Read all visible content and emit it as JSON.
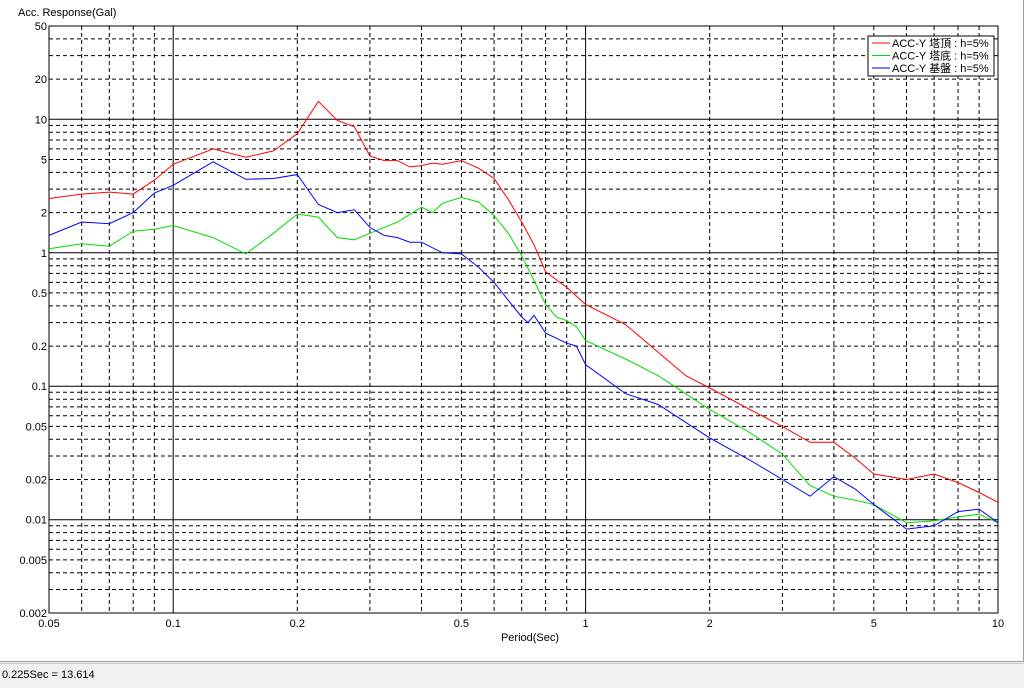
{
  "status": {
    "text": "0.225Sec = 13.614"
  },
  "chart_data": {
    "type": "line",
    "ylabel": "Acc. Response(Gal)",
    "xlabel": "Period(Sec)",
    "xscale": "log",
    "yscale": "log",
    "xlim": [
      0.05,
      10
    ],
    "ylim": [
      0.002,
      50
    ],
    "grid": true,
    "legend": "top-right",
    "x_ticks": [
      "0.05",
      "0.1",
      "0.2",
      "0.5",
      "1",
      "2",
      "5",
      "10"
    ],
    "y_ticks": [
      "0.002",
      "0.005",
      "0.01",
      "0.02",
      "0.05",
      "0.1",
      "0.2",
      "0.5",
      "1",
      "2",
      "5",
      "10",
      "20",
      "50"
    ],
    "series": [
      {
        "name": "ACC-Y 塔頂 : h=5%",
        "color": "#ff0000",
        "points": [
          [
            0.05,
            2.55
          ],
          [
            0.06,
            2.75
          ],
          [
            0.07,
            2.85
          ],
          [
            0.08,
            2.75
          ],
          [
            0.09,
            3.5
          ],
          [
            0.1,
            4.6
          ],
          [
            0.125,
            6.0
          ],
          [
            0.15,
            5.2
          ],
          [
            0.175,
            5.8
          ],
          [
            0.2,
            7.8
          ],
          [
            0.225,
            13.614
          ],
          [
            0.25,
            9.8
          ],
          [
            0.275,
            8.8
          ],
          [
            0.3,
            5.3
          ],
          [
            0.325,
            4.9
          ],
          [
            0.35,
            4.9
          ],
          [
            0.375,
            4.4
          ],
          [
            0.4,
            4.5
          ],
          [
            0.425,
            4.7
          ],
          [
            0.45,
            4.6
          ],
          [
            0.5,
            4.9
          ],
          [
            0.55,
            4.3
          ],
          [
            0.6,
            3.6
          ],
          [
            0.65,
            2.5
          ],
          [
            0.7,
            1.7
          ],
          [
            0.75,
            1.15
          ],
          [
            0.8,
            0.72
          ],
          [
            0.9,
            0.55
          ],
          [
            1.0,
            0.41
          ],
          [
            1.25,
            0.29
          ],
          [
            1.5,
            0.18
          ],
          [
            1.75,
            0.12
          ],
          [
            2.0,
            0.097
          ],
          [
            2.5,
            0.067
          ],
          [
            3.0,
            0.05
          ],
          [
            3.5,
            0.038
          ],
          [
            4.0,
            0.038
          ],
          [
            4.5,
            0.029
          ],
          [
            5.0,
            0.022
          ],
          [
            6.0,
            0.02
          ],
          [
            7.0,
            0.022
          ],
          [
            8.0,
            0.019
          ],
          [
            9.0,
            0.016
          ],
          [
            10.0,
            0.0135
          ]
        ]
      },
      {
        "name": "ACC-Y 塔底 : h=5%",
        "color": "#00dd00",
        "points": [
          [
            0.05,
            1.07
          ],
          [
            0.06,
            1.17
          ],
          [
            0.07,
            1.12
          ],
          [
            0.08,
            1.45
          ],
          [
            0.09,
            1.5
          ],
          [
            0.1,
            1.6
          ],
          [
            0.125,
            1.3
          ],
          [
            0.15,
            0.98
          ],
          [
            0.175,
            1.4
          ],
          [
            0.2,
            1.95
          ],
          [
            0.225,
            1.85
          ],
          [
            0.25,
            1.3
          ],
          [
            0.275,
            1.25
          ],
          [
            0.3,
            1.4
          ],
          [
            0.35,
            1.7
          ],
          [
            0.4,
            2.2
          ],
          [
            0.425,
            2.0
          ],
          [
            0.45,
            2.35
          ],
          [
            0.5,
            2.6
          ],
          [
            0.55,
            2.4
          ],
          [
            0.6,
            1.9
          ],
          [
            0.65,
            1.4
          ],
          [
            0.7,
            0.95
          ],
          [
            0.75,
            0.62
          ],
          [
            0.8,
            0.41
          ],
          [
            0.85,
            0.33
          ],
          [
            0.9,
            0.31
          ],
          [
            0.95,
            0.28
          ],
          [
            1.0,
            0.22
          ],
          [
            1.25,
            0.16
          ],
          [
            1.5,
            0.12
          ],
          [
            2.0,
            0.067
          ],
          [
            2.5,
            0.045
          ],
          [
            3.0,
            0.031
          ],
          [
            3.5,
            0.018
          ],
          [
            4.0,
            0.015
          ],
          [
            4.5,
            0.014
          ],
          [
            5.0,
            0.013
          ],
          [
            6.0,
            0.0095
          ],
          [
            7.0,
            0.0098
          ],
          [
            8.0,
            0.0105
          ],
          [
            9.0,
            0.011
          ],
          [
            10.0,
            0.0095
          ]
        ]
      },
      {
        "name": "ACC-Y 基盤 : h=5%",
        "color": "#0000ff",
        "points": [
          [
            0.05,
            1.35
          ],
          [
            0.06,
            1.7
          ],
          [
            0.07,
            1.65
          ],
          [
            0.08,
            2.0
          ],
          [
            0.09,
            2.8
          ],
          [
            0.1,
            3.2
          ],
          [
            0.125,
            4.8
          ],
          [
            0.15,
            3.55
          ],
          [
            0.175,
            3.6
          ],
          [
            0.2,
            3.85
          ],
          [
            0.225,
            2.3
          ],
          [
            0.25,
            2.0
          ],
          [
            0.275,
            2.1
          ],
          [
            0.3,
            1.55
          ],
          [
            0.325,
            1.35
          ],
          [
            0.35,
            1.3
          ],
          [
            0.375,
            1.2
          ],
          [
            0.4,
            1.2
          ],
          [
            0.45,
            1.0
          ],
          [
            0.5,
            0.98
          ],
          [
            0.55,
            0.78
          ],
          [
            0.6,
            0.6
          ],
          [
            0.65,
            0.44
          ],
          [
            0.7,
            0.33
          ],
          [
            0.725,
            0.3
          ],
          [
            0.75,
            0.34
          ],
          [
            0.8,
            0.25
          ],
          [
            0.9,
            0.21
          ],
          [
            0.95,
            0.2
          ],
          [
            1.0,
            0.145
          ],
          [
            1.25,
            0.088
          ],
          [
            1.5,
            0.073
          ],
          [
            2.0,
            0.041
          ],
          [
            2.5,
            0.028
          ],
          [
            3.0,
            0.02
          ],
          [
            3.5,
            0.015
          ],
          [
            4.0,
            0.021
          ],
          [
            4.5,
            0.017
          ],
          [
            5.0,
            0.013
          ],
          [
            6.0,
            0.0085
          ],
          [
            7.0,
            0.009
          ],
          [
            8.0,
            0.0115
          ],
          [
            9.0,
            0.012
          ],
          [
            10.0,
            0.0095
          ]
        ]
      }
    ]
  }
}
